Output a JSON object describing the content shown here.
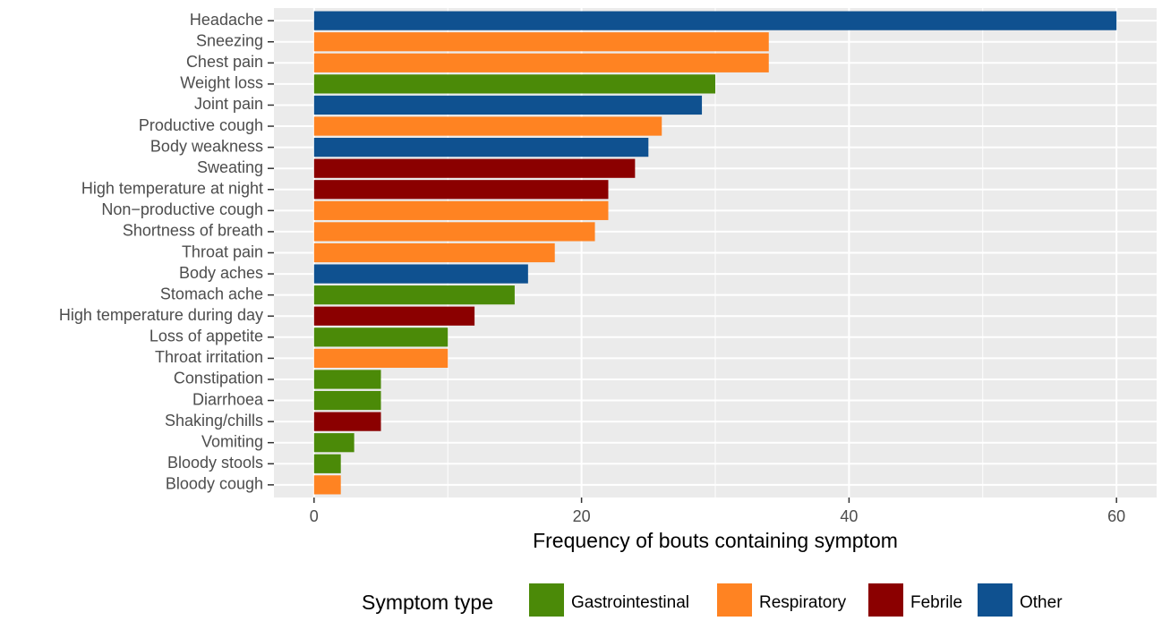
{
  "chart_data": {
    "type": "bar",
    "orientation": "horizontal",
    "xlabel": "Frequency of bouts containing symptom",
    "legend_title": "Symptom type",
    "legend": "bottom",
    "categories": [
      "Headache",
      "Sneezing",
      "Chest pain",
      "Weight loss",
      "Joint pain",
      "Productive cough",
      "Body weakness",
      "Sweating",
      "High temperature at night",
      "Non−productive cough",
      "Shortness of breath",
      "Throat pain",
      "Body aches",
      "Stomach ache",
      "High temperature during day",
      "Loss of appetite",
      "Throat irritation",
      "Constipation",
      "Diarrhoea",
      "Shaking/chills",
      "Vomiting",
      "Bloody stools",
      "Bloody cough"
    ],
    "series": [
      {
        "name": "Gastrointestinal",
        "color": "#4b8a08",
        "values": [
          null,
          null,
          null,
          30,
          null,
          null,
          null,
          null,
          null,
          null,
          null,
          null,
          null,
          15,
          null,
          10,
          null,
          5,
          5,
          null,
          3,
          2,
          null
        ]
      },
      {
        "name": "Respiratory",
        "color": "#ff8322",
        "values": [
          null,
          34,
          34,
          null,
          null,
          26,
          null,
          null,
          null,
          22,
          21,
          18,
          null,
          null,
          null,
          null,
          10,
          null,
          null,
          null,
          null,
          null,
          2
        ]
      },
      {
        "name": "Febrile",
        "color": "#8b0000",
        "values": [
          null,
          null,
          null,
          null,
          null,
          null,
          null,
          24,
          22,
          null,
          null,
          null,
          null,
          null,
          12,
          null,
          null,
          null,
          null,
          5,
          null,
          null,
          null
        ]
      },
      {
        "name": "Other",
        "color": "#0f5190",
        "values": [
          60,
          null,
          null,
          null,
          29,
          null,
          25,
          null,
          null,
          null,
          null,
          null,
          16,
          null,
          null,
          null,
          null,
          null,
          null,
          null,
          null,
          null,
          null
        ]
      }
    ],
    "xlim": [
      -3,
      63
    ],
    "xticks": [
      0,
      20,
      40,
      60
    ],
    "xminor": [
      10,
      30,
      50
    ],
    "grid": true
  }
}
